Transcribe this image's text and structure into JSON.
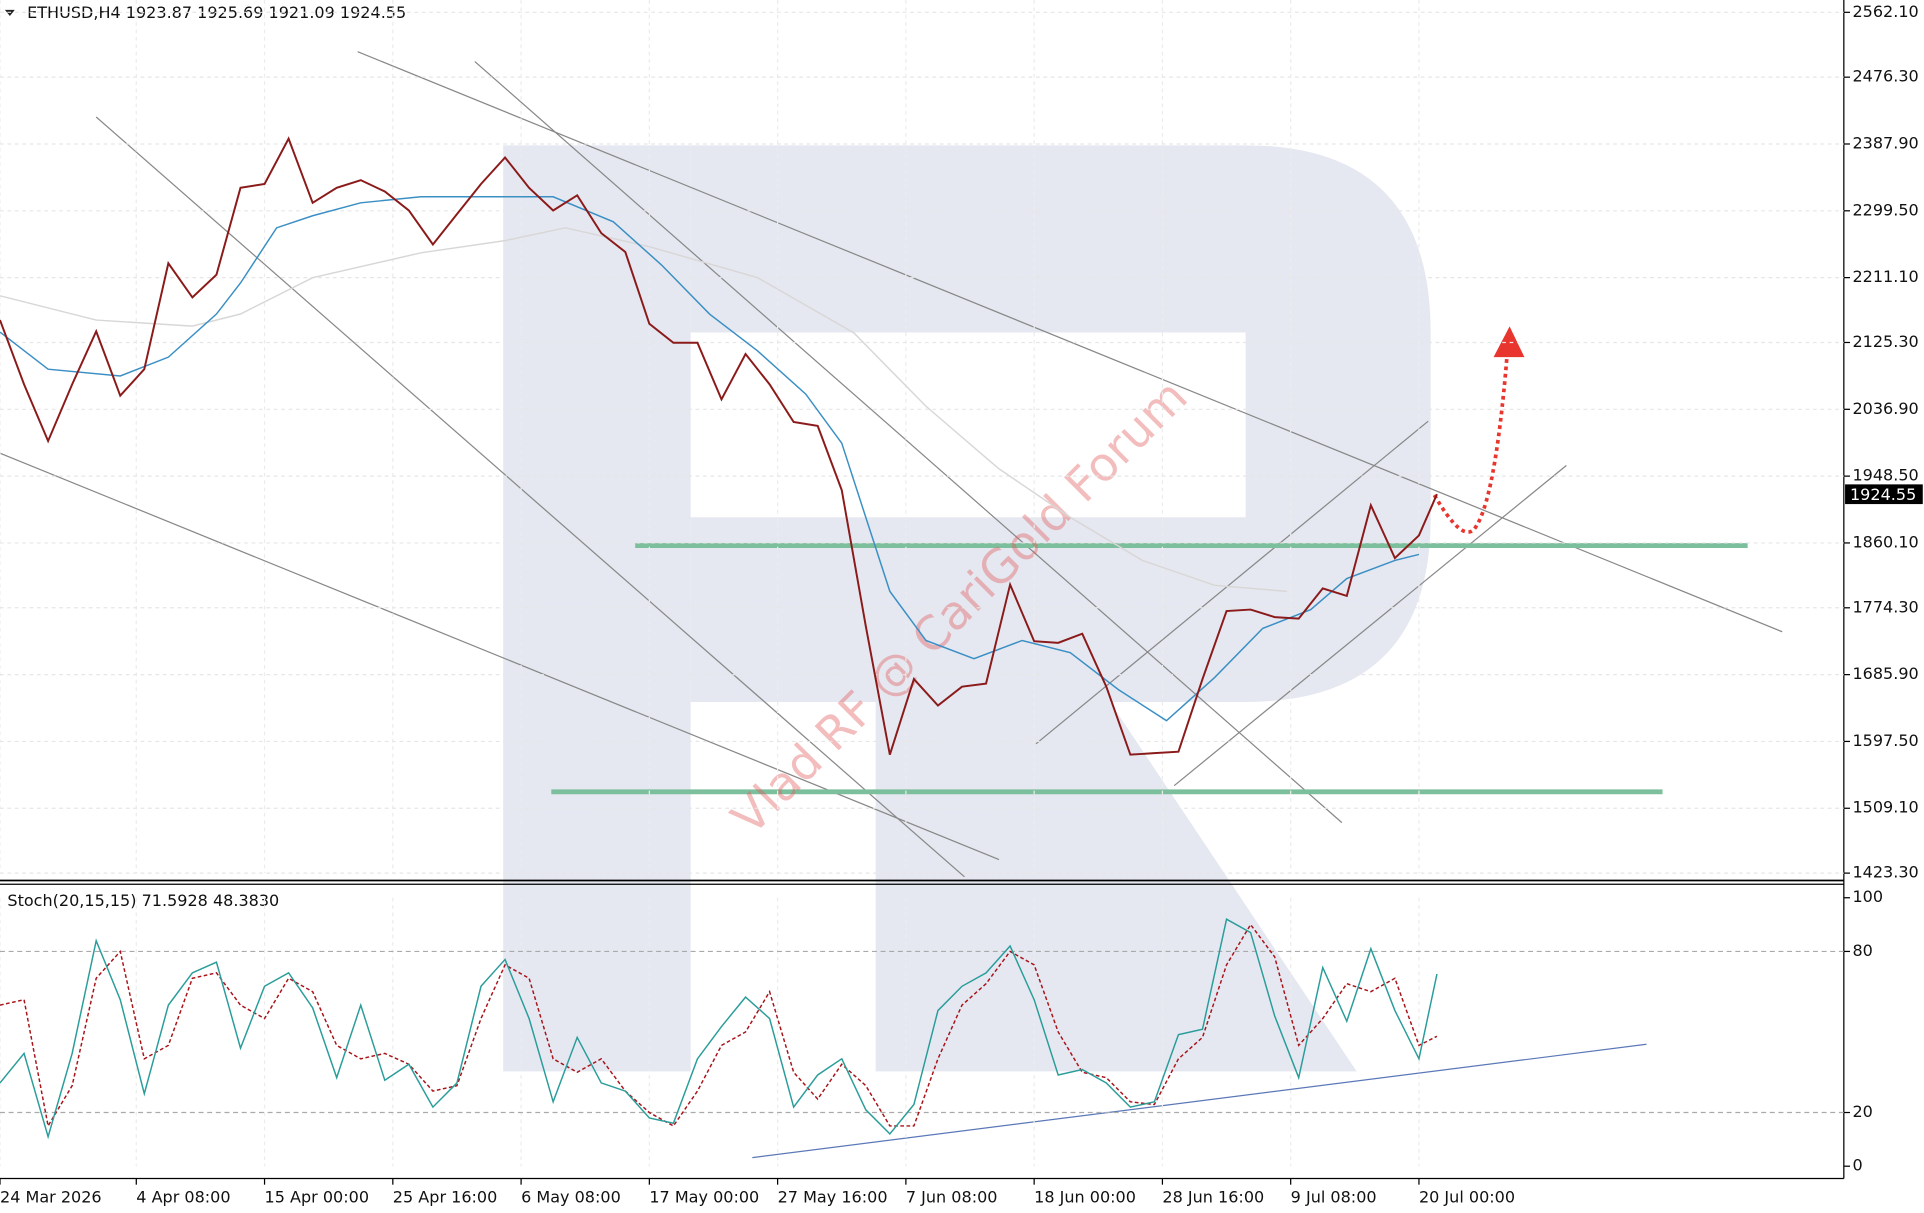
{
  "chart_data": [
    {
      "type": "line",
      "title": "ETHUSD,H4  1923.87 1925.69 1921.09 1924.55",
      "watermark": "Vlad RF @ CariGold Forum",
      "x": [
        "2026-03-24T00:00",
        "2026-03-26T00:00",
        "2026-03-28T00:00",
        "2026-03-30T00:00",
        "2026-04-01T00:00",
        "2026-04-03T00:00",
        "2026-04-05T00:00",
        "2026-04-07T00:00",
        "2026-04-09T00:00",
        "2026-04-11T00:00",
        "2026-04-13T00:00",
        "2026-04-15T00:00",
        "2026-04-17T00:00",
        "2026-04-19T00:00",
        "2026-04-21T00:00",
        "2026-04-23T00:00",
        "2026-04-25T00:00",
        "2026-04-27T00:00",
        "2026-04-29T00:00",
        "2026-05-01T00:00",
        "2026-05-03T00:00",
        "2026-05-05T00:00",
        "2026-05-07T00:00",
        "2026-05-09T00:00",
        "2026-05-11T00:00",
        "2026-05-13T00:00",
        "2026-05-15T00:00",
        "2026-05-17T00:00",
        "2026-05-19T00:00",
        "2026-05-21T00:00",
        "2026-05-23T00:00",
        "2026-05-25T00:00",
        "2026-05-27T00:00",
        "2026-05-29T00:00",
        "2026-05-31T00:00",
        "2026-06-02T00:00",
        "2026-06-04T00:00",
        "2026-06-06T00:00",
        "2026-06-08T00:00",
        "2026-06-10T00:00",
        "2026-06-12T00:00",
        "2026-06-14T00:00",
        "2026-06-16T00:00",
        "2026-06-18T00:00",
        "2026-06-20T00:00",
        "2026-06-22T00:00",
        "2026-06-24T00:00",
        "2026-06-26T00:00",
        "2026-06-28T00:00",
        "2026-06-30T00:00",
        "2026-07-02T00:00",
        "2026-07-04T00:00",
        "2026-07-06T00:00",
        "2026-07-08T00:00",
        "2026-07-10T00:00",
        "2026-07-12T00:00",
        "2026-07-14T00:00",
        "2026-07-16T00:00",
        "2026-07-18T00:00",
        "2026-07-20T00:00",
        "2026-07-21T12:00"
      ],
      "series": [
        {
          "color": "#8b1a1a",
          "values": [
            2155,
            2070,
            1995,
            2070,
            2140,
            2055,
            2090,
            2230,
            2185,
            2215,
            2330,
            2335,
            2395,
            2310,
            2330,
            2340,
            2325,
            2300,
            2255,
            2295,
            2335,
            2370,
            2330,
            2300,
            2320,
            2270,
            2245,
            2150,
            2125,
            2125,
            2050,
            2110,
            2070,
            2020,
            2015,
            1930,
            1750,
            1580,
            1680,
            1645,
            1670,
            1674,
            1805,
            1730,
            1728,
            1740,
            1670,
            1580,
            1582,
            1584,
            1680,
            1770,
            1772,
            1762,
            1760,
            1800,
            1790,
            1910,
            1840,
            1870,
            1924.55
          ]
        },
        {
          "color": "#3b8fc4",
          "x": [
            "2026-03-24T00:00",
            "2026-03-28T00:00",
            "2026-04-03T00:00",
            "2026-04-07T00:00",
            "2026-04-11T00:00",
            "2026-04-13T00:00",
            "2026-04-16T00:00",
            "2026-04-19T00:00",
            "2026-04-23T00:00",
            "2026-04-28T00:00",
            "2026-05-04T00:00",
            "2026-05-09T00:00",
            "2026-05-14T00:00",
            "2026-05-18T00:00",
            "2026-05-22T00:00",
            "2026-05-26T00:00",
            "2026-05-30T00:00",
            "2026-06-02T00:00",
            "2026-06-04T00:00",
            "2026-06-06T00:00",
            "2026-06-09T00:00",
            "2026-06-13T00:00",
            "2026-06-17T00:00",
            "2026-06-21T00:00",
            "2026-06-25T00:00",
            "2026-06-29T00:00",
            "2026-07-03T00:00",
            "2026-07-07T00:00",
            "2026-07-11T00:00",
            "2026-07-14T00:00",
            "2026-07-18T00:00",
            "2026-07-20T00:00"
          ],
          "values": [
            2139,
            2090,
            2081,
            2106,
            2163,
            2204,
            2277,
            2293,
            2310,
            2318,
            2318,
            2318,
            2285,
            2228,
            2163,
            2114,
            2057,
            1992,
            1894,
            1796,
            1731,
            1707,
            1731,
            1715,
            1666,
            1625,
            1682,
            1747,
            1772,
            1813,
            1837,
            1845
          ]
        },
        {
          "color": "#d9d6d6",
          "x": [
            "2026-03-24T00:00",
            "2026-04-01T00:00",
            "2026-04-09T00:00",
            "2026-04-13T00:00",
            "2026-04-19T00:00",
            "2026-04-28T00:00",
            "2026-05-05T00:00",
            "2026-05-10T00:00",
            "2026-05-17T00:00",
            "2026-05-26T00:00",
            "2026-06-03T00:00",
            "2026-06-09T00:00",
            "2026-06-15T00:00",
            "2026-06-21T00:00",
            "2026-06-27T00:00",
            "2026-07-03T00:00",
            "2026-07-09T00:00"
          ],
          "values": [
            2187,
            2155,
            2147,
            2163,
            2211,
            2244,
            2260,
            2277,
            2252,
            2211,
            2138,
            2041,
            1959,
            1894,
            1837,
            1804,
            1796
          ]
        }
      ],
      "xlim": [
        "2026-03-24T00:00",
        "2026-08-24T08:00"
      ],
      "ylim": [
        1423.3,
        2562.1
      ],
      "yticks": [
        {
          "value": 2562.1,
          "label": "2562.10"
        },
        {
          "value": 2476.3,
          "label": "2476.30"
        },
        {
          "value": 2387.9,
          "label": "2387.90"
        },
        {
          "value": 2299.5,
          "label": "2299.50"
        },
        {
          "value": 2211.1,
          "label": "2211.10"
        },
        {
          "value": 2125.3,
          "label": "2125.30"
        },
        {
          "value": 2036.9,
          "label": "2036.90"
        },
        {
          "value": 1948.5,
          "label": "1948.50"
        },
        {
          "value": 1860.1,
          "label": "1860.10"
        },
        {
          "value": 1774.3,
          "label": "1774.30"
        },
        {
          "value": 1685.9,
          "label": "1685.90"
        },
        {
          "value": 1597.5,
          "label": "1597.50"
        },
        {
          "value": 1509.1,
          "label": "1509.10"
        },
        {
          "value": 1423.3,
          "label": "1423.30"
        }
      ],
      "grid": true
    },
    {
      "type": "line",
      "title": "Stoch(20,15,15) 71.5928 48.3830",
      "x": [
        "2026-03-24T00:00",
        "2026-03-26T00:00",
        "2026-03-28T00:00",
        "2026-03-30T00:00",
        "2026-04-01T00:00",
        "2026-04-03T00:00",
        "2026-04-05T00:00",
        "2026-04-07T00:00",
        "2026-04-09T00:00",
        "2026-04-11T00:00",
        "2026-04-13T00:00",
        "2026-04-15T00:00",
        "2026-04-17T00:00",
        "2026-04-19T00:00",
        "2026-04-21T00:00",
        "2026-04-23T00:00",
        "2026-04-25T00:00",
        "2026-04-27T00:00",
        "2026-04-29T00:00",
        "2026-05-01T00:00",
        "2026-05-03T00:00",
        "2026-05-05T00:00",
        "2026-05-07T00:00",
        "2026-05-09T00:00",
        "2026-05-11T00:00",
        "2026-05-13T00:00",
        "2026-05-15T00:00",
        "2026-05-17T00:00",
        "2026-05-19T00:00",
        "2026-05-21T00:00",
        "2026-05-23T00:00",
        "2026-05-25T00:00",
        "2026-05-27T00:00",
        "2026-05-29T00:00",
        "2026-05-31T00:00",
        "2026-06-02T00:00",
        "2026-06-04T00:00",
        "2026-06-06T00:00",
        "2026-06-08T00:00",
        "2026-06-10T00:00",
        "2026-06-12T00:00",
        "2026-06-14T00:00",
        "2026-06-16T00:00",
        "2026-06-18T00:00",
        "2026-06-20T00:00",
        "2026-06-22T00:00",
        "2026-06-24T00:00",
        "2026-06-26T00:00",
        "2026-06-28T00:00",
        "2026-06-30T00:00",
        "2026-07-02T00:00",
        "2026-07-04T00:00",
        "2026-07-06T00:00",
        "2026-07-08T00:00",
        "2026-07-10T00:00",
        "2026-07-12T00:00",
        "2026-07-14T00:00",
        "2026-07-16T00:00",
        "2026-07-18T00:00",
        "2026-07-20T00:00",
        "2026-07-21T12:00"
      ],
      "series": [
        {
          "color": "#2a9d9a",
          "values": [
            31,
            42,
            11,
            42,
            84,
            62,
            27,
            60,
            72,
            76,
            44,
            67,
            72,
            59,
            33,
            60,
            32,
            38,
            22,
            31,
            67,
            77,
            55,
            24,
            48,
            31,
            28,
            18,
            16,
            40,
            52,
            63,
            55,
            22,
            34,
            40,
            21,
            12,
            23,
            58,
            67,
            72,
            82,
            62,
            34,
            36,
            31,
            22,
            24,
            49,
            51,
            92,
            87,
            56,
            33,
            74,
            54,
            81,
            58,
            40,
            71.6
          ]
        },
        {
          "color": "#a8141a",
          "style": "dashed",
          "values": [
            60,
            62,
            15,
            30,
            70,
            80,
            40,
            45,
            70,
            72,
            60,
            55,
            70,
            65,
            45,
            40,
            42,
            38,
            28,
            30,
            55,
            75,
            70,
            40,
            35,
            40,
            28,
            20,
            15,
            28,
            45,
            50,
            65,
            35,
            25,
            38,
            30,
            15,
            15,
            40,
            60,
            68,
            80,
            75,
            50,
            35,
            33,
            24,
            23,
            40,
            48,
            75,
            90,
            78,
            45,
            55,
            68,
            65,
            70,
            45,
            48.4
          ]
        }
      ],
      "xlim": [
        "2026-03-24T00:00",
        "2026-08-24T08:00"
      ],
      "ylim": [
        0,
        100
      ],
      "yticks": [
        100,
        80,
        20,
        0
      ],
      "levels": [
        80,
        20
      ],
      "xticks": [
        {
          "value": "2026-03-24T00:00",
          "label": "24 Mar 2026"
        },
        {
          "value": "2026-04-04T08:00",
          "label": "4 Apr 08:00"
        },
        {
          "value": "2026-04-15T00:00",
          "label": "15 Apr 00:00"
        },
        {
          "value": "2026-04-25T16:00",
          "label": "25 Apr 16:00"
        },
        {
          "value": "2026-05-06T08:00",
          "label": "6 May 08:00"
        },
        {
          "value": "2026-05-17T00:00",
          "label": "17 May 00:00"
        },
        {
          "value": "2026-05-27T16:00",
          "label": "27 May 16:00"
        },
        {
          "value": "2026-06-07T08:00",
          "label": "7 Jun 08:00"
        },
        {
          "value": "2026-06-18T00:00",
          "label": "18 Jun 00:00"
        },
        {
          "value": "2026-06-28T16:00",
          "label": "28 Jun 16:00"
        },
        {
          "value": "2026-07-09T08:00",
          "label": "9 Jul 08:00"
        },
        {
          "value": "2026-07-20T00:00",
          "label": "20 Jul 00:00"
        }
      ],
      "grid": true
    }
  ]
}
